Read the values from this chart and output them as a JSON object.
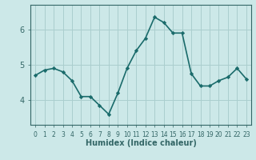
{
  "xlabel": "Humidex (Indice chaleur)",
  "x": [
    0,
    1,
    2,
    3,
    4,
    5,
    6,
    7,
    8,
    9,
    10,
    11,
    12,
    13,
    14,
    15,
    16,
    17,
    18,
    19,
    20,
    21,
    22,
    23
  ],
  "y": [
    4.7,
    4.85,
    4.9,
    4.8,
    4.55,
    4.1,
    4.1,
    3.85,
    3.6,
    4.2,
    4.9,
    5.4,
    5.75,
    6.35,
    6.2,
    5.9,
    5.9,
    4.75,
    4.4,
    4.4,
    4.55,
    4.65,
    4.9,
    4.6
  ],
  "line_color": "#1a6b6b",
  "marker": "D",
  "marker_size": 2.2,
  "bg_color": "#cce8e8",
  "grid_color": "#aacece",
  "axis_color": "#336666",
  "tick_color": "#336666",
  "ylim": [
    3.3,
    6.7
  ],
  "yticks": [
    4,
    5,
    6
  ],
  "xlim": [
    -0.5,
    23.5
  ],
  "linewidth": 1.2,
  "xlabel_fontsize": 7,
  "ytick_fontsize": 7,
  "xtick_fontsize": 5.5
}
